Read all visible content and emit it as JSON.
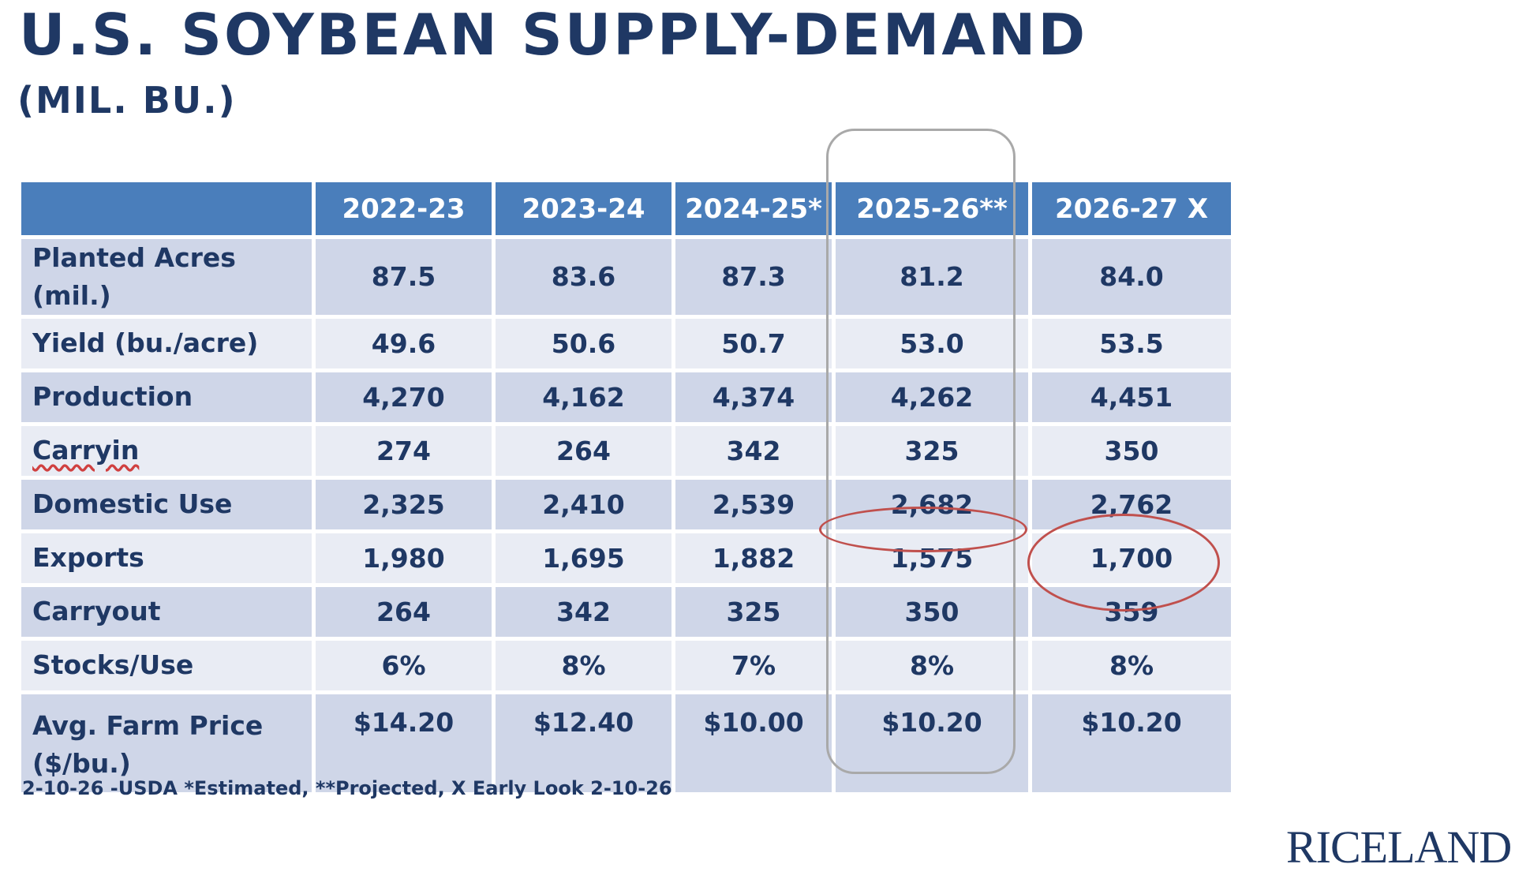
{
  "title": "U.S. SOYBEAN SUPPLY-DEMAND",
  "subtitle": "(MIL. BU.)",
  "table": {
    "headers": [
      "",
      "2022-23",
      "2023-24",
      "2024-25*",
      "2025-26**",
      "2026-27 X"
    ],
    "rows": [
      {
        "label": "Planted Acres (mil.)",
        "values": [
          "87.5",
          "83.6",
          "87.3",
          "81.2",
          "84.0"
        ]
      },
      {
        "label": "Yield (bu./acre)",
        "values": [
          "49.6",
          "50.6",
          "50.7",
          "53.0",
          "53.5"
        ]
      },
      {
        "label": "Production",
        "values": [
          "4,270",
          "4,162",
          "4,374",
          "4,262",
          "4,451"
        ]
      },
      {
        "label": "Carryin",
        "values": [
          "274",
          "264",
          "342",
          "325",
          "350"
        ]
      },
      {
        "label": "Domestic Use",
        "values": [
          "2,325",
          "2,410",
          "2,539",
          "2,682",
          "2,762"
        ]
      },
      {
        "label": "Exports",
        "values": [
          "1,980",
          "1,695",
          "1,882",
          "1,575",
          "1,700"
        ]
      },
      {
        "label": "Carryout",
        "values": [
          "264",
          "342",
          "325",
          "350",
          "359"
        ]
      },
      {
        "label": "Stocks/Use",
        "values": [
          "6%",
          "8%",
          "7%",
          "8%",
          "8%"
        ]
      },
      {
        "label_line1": "Avg. Farm Price",
        "label_line2": "($/bu.)",
        "values": [
          "$14.20",
          "$12.40",
          "$10.00",
          "$10.20",
          "$10.20"
        ]
      }
    ]
  },
  "footnote": "2-10-26 -USDA  *Estimated, **Projected, X Early Look 2-10-26",
  "logo_text": "RICELAND",
  "colors": {
    "title": "#1f3864",
    "header_bg": "#4a7ebb",
    "row_dark": "#cfd6e8",
    "row_light": "#e9ecf4",
    "highlight_box": "#a9a9a9",
    "oval": "#c0504d"
  }
}
